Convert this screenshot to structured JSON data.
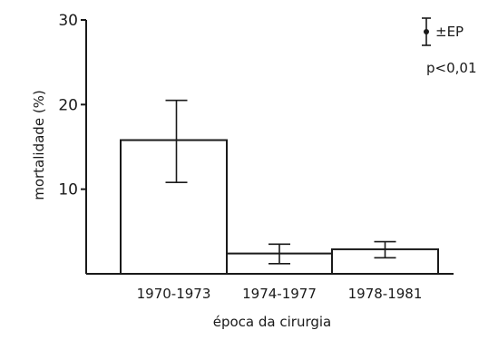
{
  "chart_data": {
    "type": "bar",
    "categories": [
      "1970-1973",
      "1974-1977",
      "1978-1981"
    ],
    "values": [
      15.8,
      2.4,
      2.9
    ],
    "error_low": [
      10.8,
      1.2,
      1.9
    ],
    "error_high": [
      20.5,
      3.5,
      3.8
    ],
    "xlabel": "época da cirurgia",
    "ylabel": "mortalidade (%)",
    "ylim": [
      0,
      30
    ],
    "yticks": [
      "10",
      "20",
      "30"
    ],
    "legend": {
      "error_label": "±EP",
      "pvalue": "p<0,01",
      "placement": "top-right"
    },
    "grid": false
  },
  "colors": {
    "ink": "#1a1a1a",
    "background": "#ffffff"
  }
}
